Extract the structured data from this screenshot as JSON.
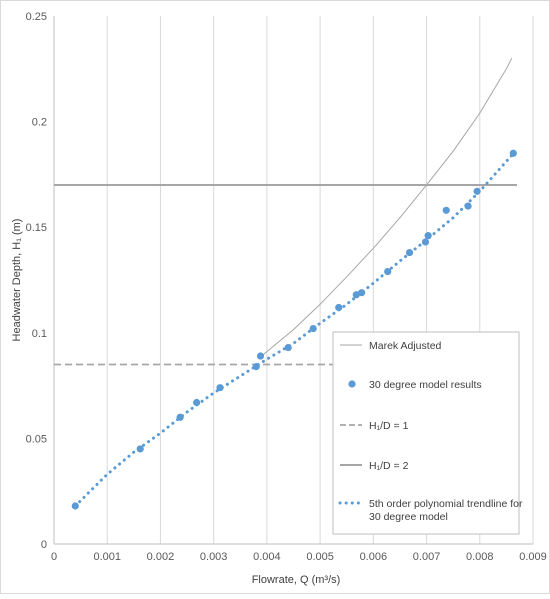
{
  "chart_data": {
    "type": "scatter",
    "xlabel": "Flowrate, Q (m³/s)",
    "ylabel": "Headwater Depth, H₁ (m)",
    "xlim": [
      0,
      0.009
    ],
    "ylim": [
      0,
      0.25
    ],
    "x_ticks": [
      "0",
      "0.001",
      "0.002",
      "0.003",
      "0.004",
      "0.005",
      "0.006",
      "0.007",
      "0.008",
      "0.009"
    ],
    "y_ticks": [
      "0",
      "0.05",
      "0.1",
      "0.15",
      "0.2",
      "0.25"
    ],
    "grid": "vertical",
    "legend_position": "right",
    "series": [
      {
        "name": "Marek Adjusted",
        "kind": "line",
        "color": "#a6a6a6",
        "x": [
          0.0039,
          0.0045,
          0.005,
          0.0055,
          0.006,
          0.0065,
          0.007,
          0.0075,
          0.008,
          0.0085,
          0.0086
        ],
        "y": [
          0.089,
          0.1015,
          0.1135,
          0.1265,
          0.14,
          0.1545,
          0.17,
          0.186,
          0.204,
          0.225,
          0.23
        ]
      },
      {
        "name": "30 degree model results",
        "kind": "scatter",
        "color": "#5b9bd5",
        "x": [
          0.0004,
          0.00162,
          0.00237,
          0.00268,
          0.00312,
          0.0038,
          0.00388,
          0.0044,
          0.00487,
          0.00535,
          0.00568,
          0.00578,
          0.00627,
          0.00668,
          0.00698,
          0.00703,
          0.00737,
          0.00778,
          0.00795,
          0.00863
        ],
        "y": [
          0.018,
          0.045,
          0.06,
          0.067,
          0.074,
          0.084,
          0.089,
          0.093,
          0.102,
          0.112,
          0.118,
          0.119,
          0.129,
          0.138,
          0.143,
          0.146,
          0.158,
          0.16,
          0.167,
          0.185
        ]
      },
      {
        "name": "H₁/D = 1",
        "kind": "hline-dashed",
        "color": "#a6a6a6",
        "x": [
          0,
          0.00562
        ],
        "y": [
          0.085,
          0.085
        ]
      },
      {
        "name": "H₁/D = 2",
        "kind": "hline",
        "color": "#a6a6a6",
        "x": [
          0,
          0.0087
        ],
        "y": [
          0.17,
          0.17
        ]
      },
      {
        "name": "5th order polynomial trendline for 30 degree model",
        "kind": "trendline-dotted",
        "color": "#5b9bd5",
        "x": [
          0.0004,
          0.001,
          0.0015,
          0.002,
          0.0025,
          0.003,
          0.0035,
          0.004,
          0.0045,
          0.005,
          0.0055,
          0.006,
          0.0065,
          0.007,
          0.0075,
          0.008,
          0.0086
        ],
        "y": [
          0.018,
          0.033,
          0.0435,
          0.0525,
          0.0625,
          0.0715,
          0.0795,
          0.0875,
          0.095,
          0.1045,
          0.1135,
          0.1235,
          0.134,
          0.144,
          0.1545,
          0.167,
          0.184
        ]
      }
    ]
  }
}
